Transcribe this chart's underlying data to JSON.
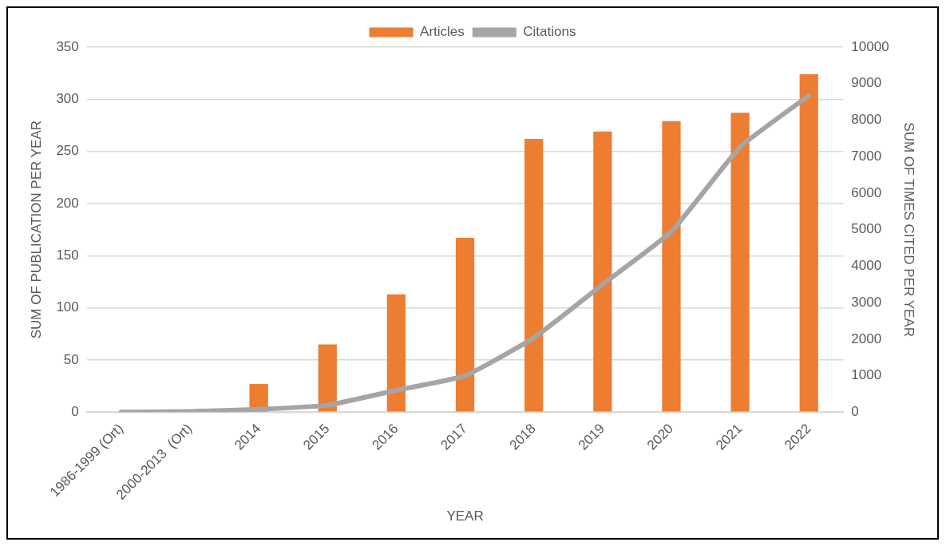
{
  "chart_data": {
    "type": "bar",
    "categories": [
      "1986-1999 (Ort)",
      "2000-2013  (Ort)",
      "2014",
      "2015",
      "2016",
      "2017",
      "2018",
      "2019",
      "2020",
      "2021",
      "2022"
    ],
    "series": [
      {
        "name": "Articles",
        "color": "#ed7d31",
        "values": [
          0,
          0,
          27,
          65,
          113,
          167,
          262,
          269,
          279,
          287,
          324
        ]
      },
      {
        "name": "Citations",
        "type": "line",
        "axis": "y2",
        "color": "#a5a5a5",
        "values": [
          0,
          20,
          80,
          190,
          600,
          1000,
          2040,
          3500,
          4950,
          7260,
          8670
        ]
      }
    ],
    "xlabel": "YEAR",
    "ylabel": "SUM OF PUBLICATION PER YEAR",
    "y2label": "SUM OF TIMES CITED PER YEAR",
    "ylim": [
      0,
      350
    ],
    "yticks": [
      0,
      50,
      100,
      150,
      200,
      250,
      300,
      350
    ],
    "y2lim": [
      0,
      10000
    ],
    "y2ticks": [
      0,
      1000,
      2000,
      3000,
      4000,
      5000,
      6000,
      7000,
      8000,
      9000,
      10000
    ],
    "grid": "y",
    "legend": "top",
    "marker": "none"
  }
}
